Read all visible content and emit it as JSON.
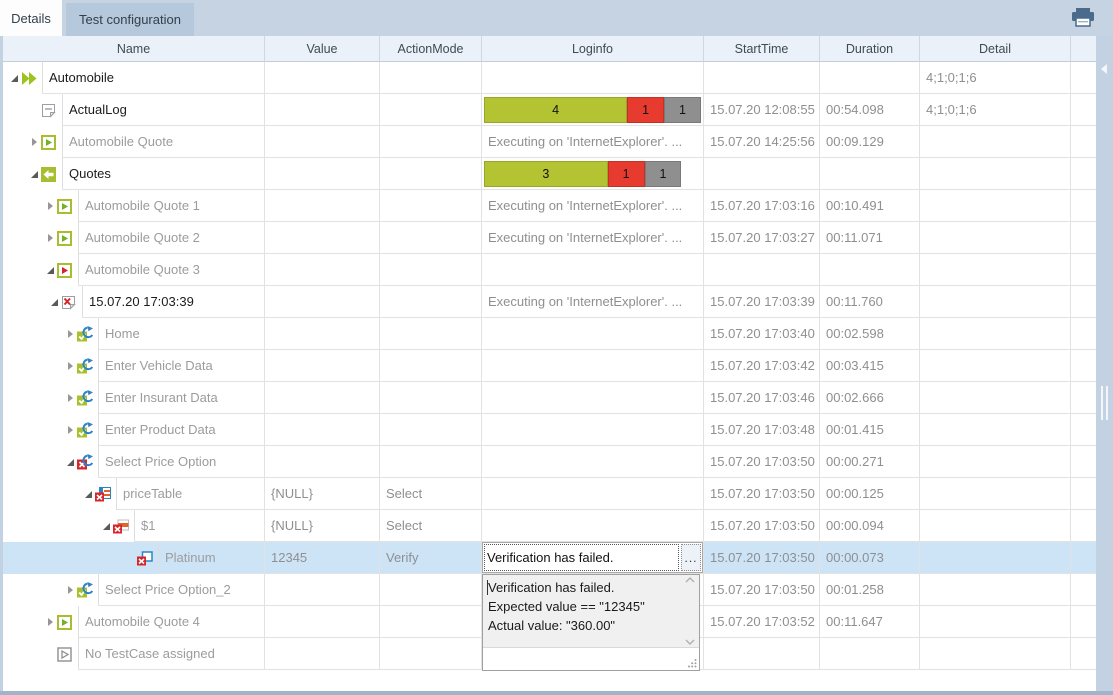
{
  "tabs": [
    {
      "label": "Details",
      "active": true
    },
    {
      "label": "Test configuration",
      "active": false
    }
  ],
  "toolbar": {
    "printer_icon": "printer-icon"
  },
  "columns": [
    "Name",
    "Value",
    "ActionMode",
    "Loginfo",
    "StartTime",
    "Duration",
    "Detail"
  ],
  "colors": {
    "badge_green": "#b3c331",
    "badge_red": "#e63b2e",
    "badge_gray": "#8f8f8f",
    "selection": "#cde4f7",
    "frame_strip": "#c3d2e3",
    "bottom_bar": "#a2b4c9"
  },
  "rows": [
    {
      "name": "Automobile",
      "level": 0,
      "expander": "expanded",
      "icon": "run",
      "emphasis": "dark",
      "value": "",
      "action_mode": "",
      "loginfo": {
        "type": "none"
      },
      "start_time": "",
      "duration": "",
      "detail": "4;1;0;1;6",
      "selected": false
    },
    {
      "name": "ActualLog",
      "level": 1,
      "expander": "none",
      "icon": "log",
      "emphasis": "dark",
      "value": "",
      "action_mode": "",
      "loginfo": {
        "type": "badges",
        "badges": [
          {
            "count": "4",
            "color": "green",
            "width_pct": 66
          },
          {
            "count": "1",
            "color": "red",
            "width_pct": 17
          },
          {
            "count": "1",
            "color": "gray",
            "width_pct": 17
          }
        ]
      },
      "start_time": "15.07.20 12:08:55",
      "duration": "00:54.098",
      "detail": "4;1;0;1;6",
      "selected": false
    },
    {
      "name": "Automobile Quote",
      "level": 1,
      "expander": "collapsed",
      "icon": "tc-green",
      "emphasis": "gray",
      "value": "",
      "action_mode": "",
      "loginfo": {
        "type": "text",
        "text": "Executing on 'InternetExplorer'. ..."
      },
      "start_time": "15.07.20 14:25:56",
      "duration": "00:09.129",
      "detail": "",
      "selected": false
    },
    {
      "name": "Quotes",
      "level": 1,
      "expander": "expanded",
      "icon": "folder-arrow",
      "emphasis": "dark",
      "value": "",
      "action_mode": "",
      "loginfo": {
        "type": "badges",
        "badges": [
          {
            "count": "3",
            "color": "green",
            "width_pct": 57
          },
          {
            "count": "1",
            "color": "red",
            "width_pct": 17
          },
          {
            "count": "1",
            "color": "gray",
            "width_pct": 17
          }
        ]
      },
      "start_time": "",
      "duration": "",
      "detail": "",
      "selected": false
    },
    {
      "name": "Automobile Quote 1",
      "level": 2,
      "expander": "collapsed",
      "icon": "tc-green",
      "emphasis": "gray",
      "value": "",
      "action_mode": "",
      "loginfo": {
        "type": "text",
        "text": "Executing on 'InternetExplorer'. ..."
      },
      "start_time": "15.07.20 17:03:16",
      "duration": "00:10.491",
      "detail": "",
      "selected": false
    },
    {
      "name": "Automobile Quote 2",
      "level": 2,
      "expander": "collapsed",
      "icon": "tc-green",
      "emphasis": "gray",
      "value": "",
      "action_mode": "",
      "loginfo": {
        "type": "text",
        "text": "Executing on 'InternetExplorer'. ..."
      },
      "start_time": "15.07.20 17:03:27",
      "duration": "00:11.071",
      "detail": "",
      "selected": false
    },
    {
      "name": "Automobile Quote 3",
      "level": 2,
      "expander": "expanded",
      "icon": "tc-red",
      "emphasis": "gray",
      "value": "",
      "action_mode": "",
      "loginfo": {
        "type": "none"
      },
      "start_time": "",
      "duration": "",
      "detail": "",
      "selected": false
    },
    {
      "name": "15.07.20 17:03:39",
      "level": 3,
      "expander": "expanded",
      "icon": "log-failed",
      "emphasis": "dark",
      "value": "",
      "action_mode": "",
      "loginfo": {
        "type": "text",
        "text": "Executing on 'InternetExplorer'. ..."
      },
      "start_time": "15.07.20 17:03:39",
      "duration": "00:11.760",
      "detail": "",
      "selected": false
    },
    {
      "name": "Home",
      "level": 4,
      "expander": "collapsed",
      "icon": "step-pass",
      "emphasis": "gray",
      "value": "",
      "action_mode": "",
      "loginfo": {
        "type": "none"
      },
      "start_time": "15.07.20 17:03:40",
      "duration": "00:02.598",
      "detail": "",
      "selected": false
    },
    {
      "name": "Enter Vehicle Data",
      "level": 4,
      "expander": "collapsed",
      "icon": "step-pass",
      "emphasis": "gray",
      "value": "",
      "action_mode": "",
      "loginfo": {
        "type": "none"
      },
      "start_time": "15.07.20 17:03:42",
      "duration": "00:03.415",
      "detail": "",
      "selected": false
    },
    {
      "name": "Enter Insurant Data",
      "level": 4,
      "expander": "collapsed",
      "icon": "step-pass",
      "emphasis": "gray",
      "value": "",
      "action_mode": "",
      "loginfo": {
        "type": "none"
      },
      "start_time": "15.07.20 17:03:46",
      "duration": "00:02.666",
      "detail": "",
      "selected": false
    },
    {
      "name": "Enter Product Data",
      "level": 4,
      "expander": "collapsed",
      "icon": "step-pass",
      "emphasis": "gray",
      "value": "",
      "action_mode": "",
      "loginfo": {
        "type": "none"
      },
      "start_time": "15.07.20 17:03:48",
      "duration": "00:01.415",
      "detail": "",
      "selected": false
    },
    {
      "name": "Select Price Option",
      "level": 4,
      "expander": "expanded",
      "icon": "step-fail",
      "emphasis": "gray",
      "value": "",
      "action_mode": "",
      "loginfo": {
        "type": "none"
      },
      "start_time": "15.07.20 17:03:50",
      "duration": "00:00.271",
      "detail": "",
      "selected": false
    },
    {
      "name": "priceTable",
      "level": 5,
      "expander": "expanded",
      "icon": "table-fail",
      "emphasis": "gray",
      "value": "{NULL}",
      "action_mode": "Select",
      "loginfo": {
        "type": "none"
      },
      "start_time": "15.07.20 17:03:50",
      "duration": "00:00.125",
      "detail": "",
      "selected": false
    },
    {
      "name": "$1",
      "level": 6,
      "expander": "expanded",
      "icon": "row-fail",
      "emphasis": "gray",
      "value": "{NULL}",
      "action_mode": "Select",
      "loginfo": {
        "type": "none"
      },
      "start_time": "15.07.20 17:03:50",
      "duration": "00:00.094",
      "detail": "",
      "selected": false
    },
    {
      "name": "Platinum",
      "level": 7,
      "expander": "none",
      "icon": "cell-fail",
      "emphasis": "gray",
      "value": "12345",
      "action_mode": "Verify",
      "loginfo": {
        "type": "editor",
        "text": "Verification has failed.",
        "button_label": "..."
      },
      "start_time": "15.07.20 17:03:50",
      "duration": "00:00.073",
      "detail": "",
      "selected": true
    },
    {
      "name": "Select Price Option_2",
      "level": 4,
      "expander": "collapsed",
      "icon": "step-pass",
      "emphasis": "gray",
      "value": "",
      "action_mode": "",
      "loginfo": {
        "type": "none"
      },
      "start_time": "15.07.20 17:03:50",
      "duration": "00:01.258",
      "detail": "",
      "selected": false
    },
    {
      "name": "Automobile Quote 4",
      "level": 2,
      "expander": "collapsed",
      "icon": "tc-green",
      "emphasis": "gray",
      "value": "",
      "action_mode": "",
      "loginfo": {
        "type": "none"
      },
      "start_time": "15.07.20 17:03:52",
      "duration": "00:11.647",
      "detail": "",
      "selected": false
    },
    {
      "name": "No TestCase assigned",
      "level": 2,
      "expander": "none",
      "icon": "play-outline",
      "emphasis": "gray",
      "value": "",
      "action_mode": "",
      "loginfo": {
        "type": "none"
      },
      "start_time": "",
      "duration": "",
      "detail": "",
      "selected": false
    }
  ],
  "popup": {
    "lines": [
      "Verification has failed.",
      "Expected value == \"12345\"",
      "Actual value: \"360.00\""
    ]
  }
}
